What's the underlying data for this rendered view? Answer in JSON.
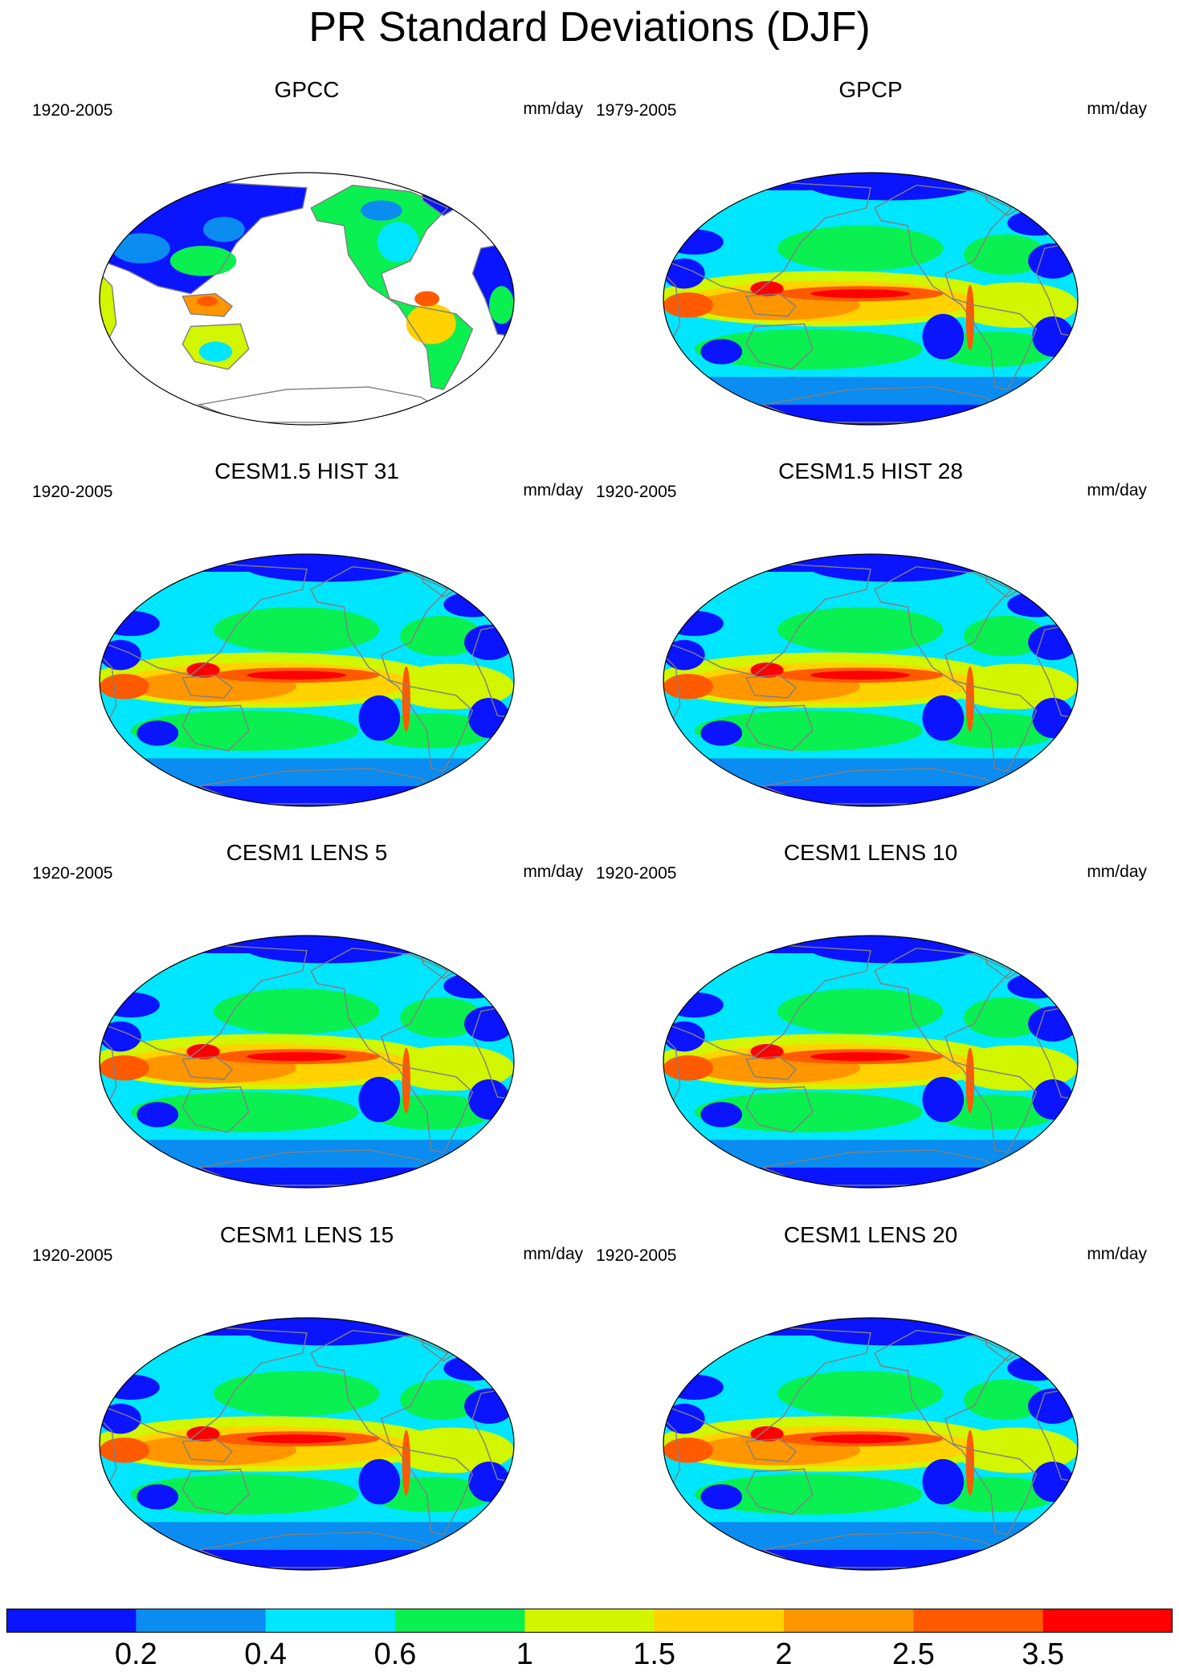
{
  "figure": {
    "title": "PR Standard Deviations (DJF)"
  },
  "panels": [
    {
      "title": "GPCC",
      "period": "1920-2005",
      "units": "mm/day",
      "coverage": "land-only"
    },
    {
      "title": "GPCP",
      "period": "1979-2005",
      "units": "mm/day",
      "coverage": "global"
    },
    {
      "title": "CESM1.5 HIST 31",
      "period": "1920-2005",
      "units": "mm/day",
      "coverage": "global"
    },
    {
      "title": "CESM1.5 HIST 28",
      "period": "1920-2005",
      "units": "mm/day",
      "coverage": "global"
    },
    {
      "title": "CESM1 LENS 5",
      "period": "1920-2005",
      "units": "mm/day",
      "coverage": "global"
    },
    {
      "title": "CESM1 LENS 10",
      "period": "1920-2005",
      "units": "mm/day",
      "coverage": "global"
    },
    {
      "title": "CESM1 LENS 15",
      "period": "1920-2005",
      "units": "mm/day",
      "coverage": "global"
    },
    {
      "title": "CESM1 LENS 20",
      "period": "1920-2005",
      "units": "mm/day",
      "coverage": "global"
    }
  ],
  "colorbar": {
    "labels": [
      "0.2",
      "0.4",
      "0.6",
      "1",
      "1.5",
      "2",
      "2.5",
      "3.5"
    ],
    "colors": [
      "#0a14ff",
      "#0a8cf0",
      "#00e6ff",
      "#0af050",
      "#d2f500",
      "#ffd200",
      "#ff9600",
      "#ff5a00",
      "#ff0000"
    ]
  },
  "map": {
    "projection": "Robinson (Pacific-centered)",
    "ocean_color": "#0a14ff",
    "missing_color": "#ffffff",
    "coast_color": "#808080"
  }
}
